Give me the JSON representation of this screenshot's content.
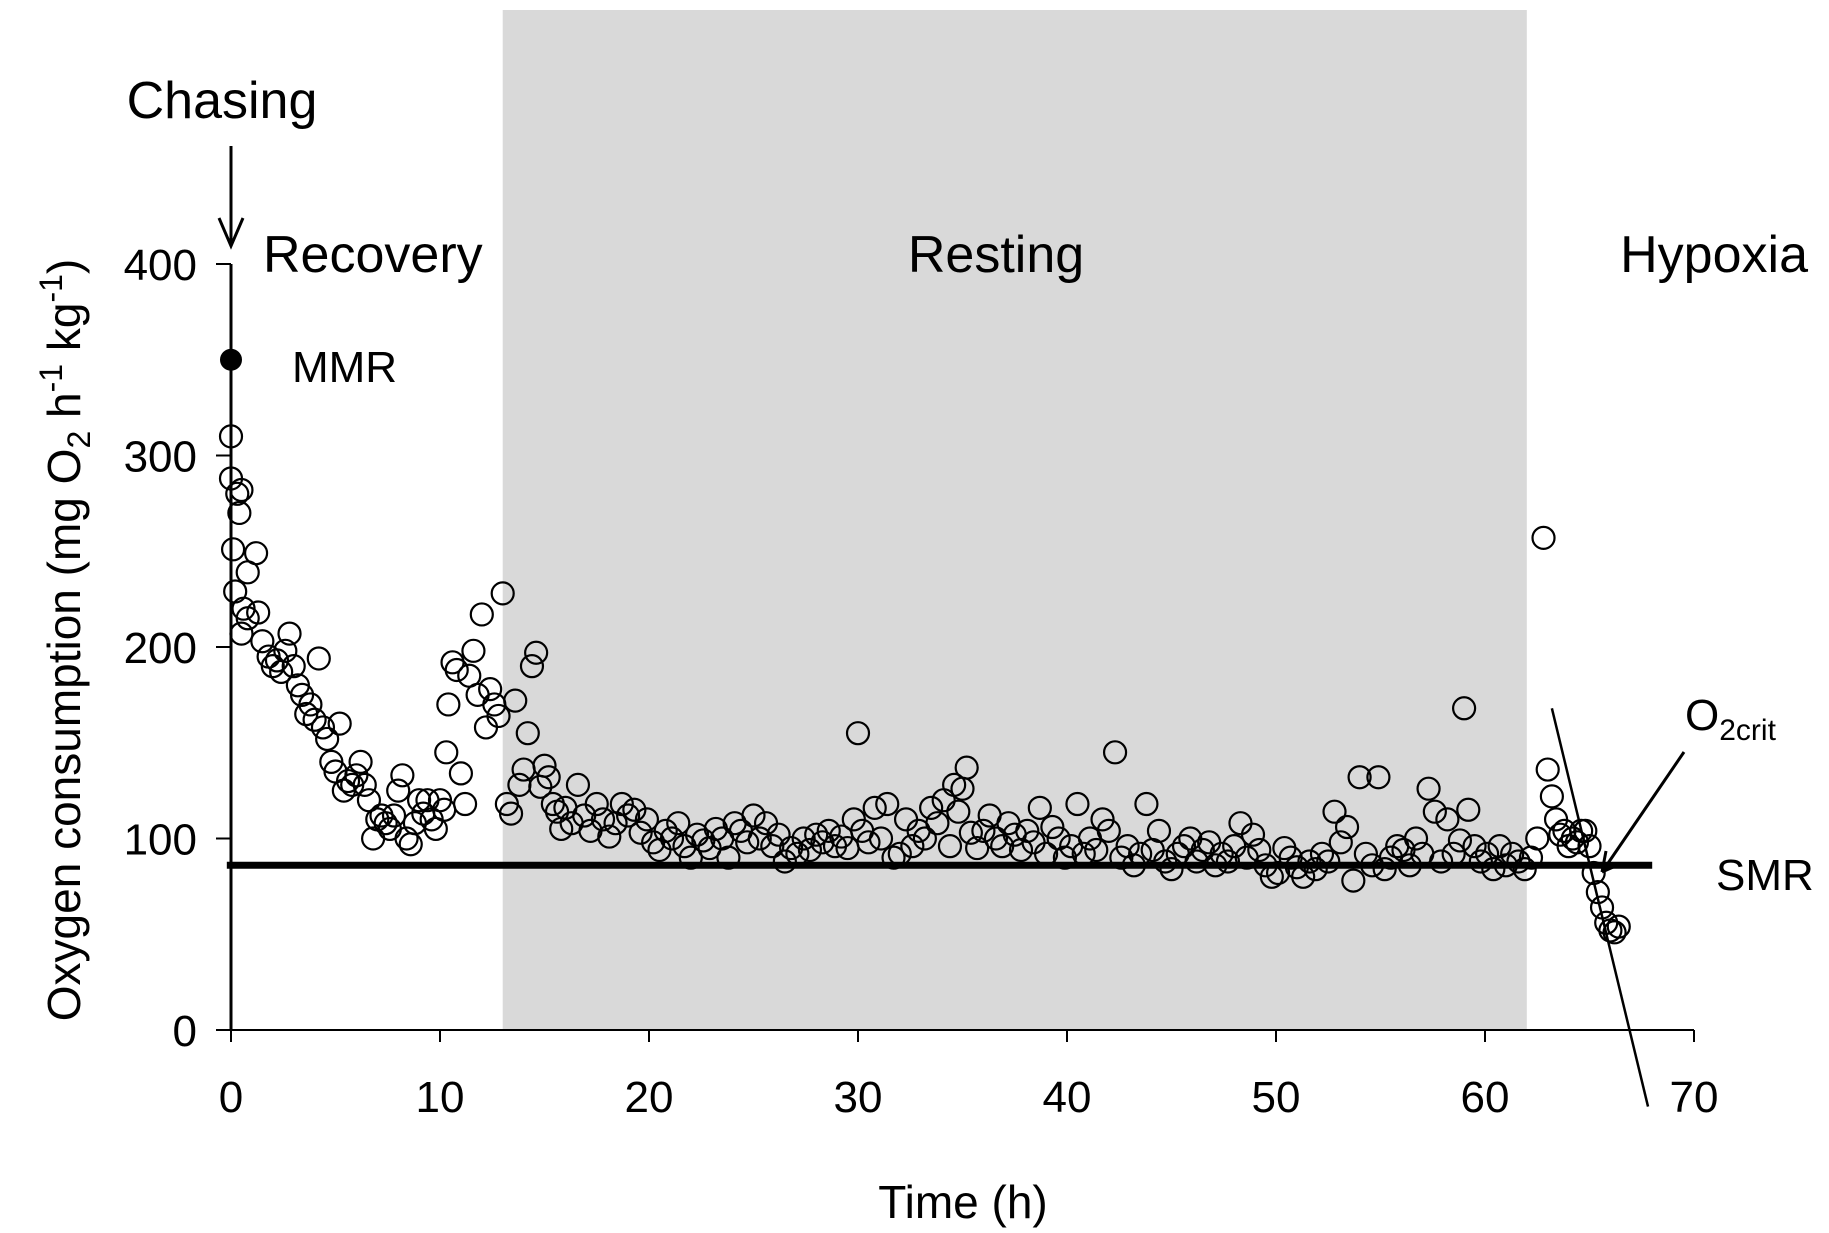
{
  "chart_data": {
    "type": "scatter",
    "title": "",
    "xlabel": "Time (h)",
    "ylabel": {
      "main": "Oxygen consumption (mg O",
      "sub": "2",
      "mid": " h",
      "sup1": "-1",
      "mid2": " kg",
      "sup2": "-1",
      "end": ")"
    },
    "xlim": [
      0,
      70
    ],
    "ylim": [
      0,
      400
    ],
    "xticks": [
      0,
      10,
      20,
      30,
      40,
      50,
      60,
      70
    ],
    "yticks": [
      0,
      100,
      200,
      300,
      400
    ],
    "grid": false,
    "shaded_region": {
      "label": "Resting",
      "x": [
        13,
        62
      ],
      "color": "#d9d9d9"
    },
    "phases": [
      "Chasing",
      "Recovery",
      "Resting",
      "Hypoxia"
    ],
    "mmr": {
      "label": "MMR",
      "x": 0,
      "y": 350
    },
    "smr": {
      "label": "SMR",
      "y": 86,
      "x": [
        -0.2,
        68
      ]
    },
    "o2crit": {
      "label": "O",
      "sub": "2crit",
      "line": [
        [
          63.2,
          168
        ],
        [
          67.8,
          -40
        ]
      ]
    },
    "series": [
      {
        "marker": "open-circle",
        "points": [
          [
            0,
            310
          ],
          [
            0,
            288
          ],
          [
            0.3,
            280
          ],
          [
            0.5,
            282
          ],
          [
            0.4,
            270
          ],
          [
            0.1,
            251
          ],
          [
            0.8,
            239
          ],
          [
            1.2,
            249
          ],
          [
            0.2,
            229
          ],
          [
            0.6,
            220
          ],
          [
            0.8,
            215
          ],
          [
            0.5,
            207
          ],
          [
            1.3,
            218
          ],
          [
            1.5,
            203
          ],
          [
            1.8,
            195
          ],
          [
            2.0,
            190
          ],
          [
            2.2,
            193
          ],
          [
            2.4,
            187
          ],
          [
            2.6,
            198
          ],
          [
            2.8,
            207
          ],
          [
            3.0,
            190
          ],
          [
            3.2,
            180
          ],
          [
            3.4,
            175
          ],
          [
            3.6,
            165
          ],
          [
            3.8,
            170
          ],
          [
            4.0,
            162
          ],
          [
            4.2,
            194
          ],
          [
            4.4,
            158
          ],
          [
            4.6,
            152
          ],
          [
            4.8,
            140
          ],
          [
            5.0,
            135
          ],
          [
            5.2,
            160
          ],
          [
            5.4,
            125
          ],
          [
            5.6,
            130
          ],
          [
            5.8,
            128
          ],
          [
            6.0,
            133
          ],
          [
            6.2,
            140
          ],
          [
            6.4,
            128
          ],
          [
            6.6,
            120
          ],
          [
            6.8,
            100
          ],
          [
            7.0,
            110
          ],
          [
            7.2,
            112
          ],
          [
            7.4,
            108
          ],
          [
            7.6,
            105
          ],
          [
            7.8,
            112
          ],
          [
            8.0,
            125
          ],
          [
            8.2,
            133
          ],
          [
            8.4,
            100
          ],
          [
            8.6,
            97
          ],
          [
            8.8,
            108
          ],
          [
            9.0,
            120
          ],
          [
            9.2,
            113
          ],
          [
            9.4,
            120
          ],
          [
            9.6,
            110
          ],
          [
            9.8,
            105
          ],
          [
            10.0,
            120
          ],
          [
            10.2,
            115
          ],
          [
            10.3,
            145
          ],
          [
            10.4,
            170
          ],
          [
            10.6,
            192
          ],
          [
            10.8,
            188
          ],
          [
            11.0,
            134
          ],
          [
            11.2,
            118
          ],
          [
            11.4,
            185
          ],
          [
            11.6,
            198
          ],
          [
            11.8,
            175
          ],
          [
            12.0,
            217
          ],
          [
            12.2,
            158
          ],
          [
            12.4,
            178
          ],
          [
            12.6,
            170
          ],
          [
            12.8,
            164
          ],
          [
            13.0,
            228
          ],
          [
            13.2,
            118
          ],
          [
            13.4,
            113
          ],
          [
            13.6,
            172
          ],
          [
            13.8,
            128
          ],
          [
            14.0,
            136
          ],
          [
            14.2,
            155
          ],
          [
            14.4,
            190
          ],
          [
            14.6,
            197
          ],
          [
            14.8,
            127
          ],
          [
            15.0,
            138
          ],
          [
            15.2,
            132
          ],
          [
            15.4,
            118
          ],
          [
            15.6,
            114
          ],
          [
            15.8,
            105
          ],
          [
            16.0,
            116
          ],
          [
            16.3,
            108
          ],
          [
            16.6,
            128
          ],
          [
            16.9,
            112
          ],
          [
            17.2,
            104
          ],
          [
            17.5,
            118
          ],
          [
            17.8,
            110
          ],
          [
            18.1,
            101
          ],
          [
            18.4,
            108
          ],
          [
            18.7,
            118
          ],
          [
            19.0,
            112
          ],
          [
            19.3,
            115
          ],
          [
            19.6,
            103
          ],
          [
            19.9,
            110
          ],
          [
            20.2,
            98
          ],
          [
            20.5,
            94
          ],
          [
            20.8,
            104
          ],
          [
            21.1,
            100
          ],
          [
            21.4,
            108
          ],
          [
            21.7,
            96
          ],
          [
            22.0,
            90
          ],
          [
            22.3,
            102
          ],
          [
            22.6,
            99
          ],
          [
            22.9,
            95
          ],
          [
            23.2,
            105
          ],
          [
            23.5,
            100
          ],
          [
            23.8,
            90
          ],
          [
            24.1,
            108
          ],
          [
            24.4,
            104
          ],
          [
            24.7,
            98
          ],
          [
            25.0,
            112
          ],
          [
            25.3,
            100
          ],
          [
            25.6,
            108
          ],
          [
            25.9,
            96
          ],
          [
            26.2,
            102
          ],
          [
            26.5,
            88
          ],
          [
            26.8,
            95
          ],
          [
            27.1,
            92
          ],
          [
            27.4,
            100
          ],
          [
            27.7,
            94
          ],
          [
            28.0,
            102
          ],
          [
            28.3,
            98
          ],
          [
            28.6,
            104
          ],
          [
            28.9,
            96
          ],
          [
            29.2,
            101
          ],
          [
            29.5,
            95
          ],
          [
            29.8,
            110
          ],
          [
            30.0,
            155
          ],
          [
            30.2,
            104
          ],
          [
            30.5,
            98
          ],
          [
            30.8,
            116
          ],
          [
            31.1,
            100
          ],
          [
            31.4,
            118
          ],
          [
            31.7,
            90
          ],
          [
            32.0,
            92
          ],
          [
            32.3,
            110
          ],
          [
            32.6,
            96
          ],
          [
            32.9,
            104
          ],
          [
            33.2,
            100
          ],
          [
            33.5,
            116
          ],
          [
            33.8,
            108
          ],
          [
            34.1,
            120
          ],
          [
            34.4,
            96
          ],
          [
            34.6,
            128
          ],
          [
            34.8,
            114
          ],
          [
            35.0,
            126
          ],
          [
            35.2,
            137
          ],
          [
            35.4,
            103
          ],
          [
            35.7,
            95
          ],
          [
            36.0,
            104
          ],
          [
            36.3,
            112
          ],
          [
            36.6,
            100
          ],
          [
            36.9,
            96
          ],
          [
            37.2,
            108
          ],
          [
            37.5,
            102
          ],
          [
            37.8,
            94
          ],
          [
            38.1,
            104
          ],
          [
            38.4,
            98
          ],
          [
            38.7,
            116
          ],
          [
            39.0,
            92
          ],
          [
            39.3,
            106
          ],
          [
            39.6,
            100
          ],
          [
            39.9,
            90
          ],
          [
            40.2,
            96
          ],
          [
            40.5,
            118
          ],
          [
            40.8,
            92
          ],
          [
            41.1,
            100
          ],
          [
            41.4,
            94
          ],
          [
            41.7,
            110
          ],
          [
            42.0,
            104
          ],
          [
            42.3,
            145
          ],
          [
            42.6,
            90
          ],
          [
            42.9,
            96
          ],
          [
            43.2,
            86
          ],
          [
            43.5,
            92
          ],
          [
            43.8,
            118
          ],
          [
            44.1,
            94
          ],
          [
            44.4,
            104
          ],
          [
            44.7,
            88
          ],
          [
            45.0,
            84
          ],
          [
            45.3,
            92
          ],
          [
            45.6,
            96
          ],
          [
            45.9,
            100
          ],
          [
            46.2,
            88
          ],
          [
            46.5,
            94
          ],
          [
            46.8,
            98
          ],
          [
            47.1,
            86
          ],
          [
            47.4,
            92
          ],
          [
            47.7,
            88
          ],
          [
            48.0,
            96
          ],
          [
            48.3,
            108
          ],
          [
            48.6,
            90
          ],
          [
            48.9,
            102
          ],
          [
            49.2,
            94
          ],
          [
            49.5,
            86
          ],
          [
            49.8,
            80
          ],
          [
            50.1,
            82
          ],
          [
            50.4,
            95
          ],
          [
            50.7,
            90
          ],
          [
            51.0,
            85
          ],
          [
            51.3,
            80
          ],
          [
            51.6,
            88
          ],
          [
            51.9,
            84
          ],
          [
            52.2,
            92
          ],
          [
            52.5,
            88
          ],
          [
            52.8,
            114
          ],
          [
            53.1,
            98
          ],
          [
            53.4,
            106
          ],
          [
            53.7,
            78
          ],
          [
            54.0,
            132
          ],
          [
            54.3,
            92
          ],
          [
            54.6,
            86
          ],
          [
            54.9,
            132
          ],
          [
            55.2,
            84
          ],
          [
            55.5,
            90
          ],
          [
            55.8,
            96
          ],
          [
            56.1,
            94
          ],
          [
            56.4,
            86
          ],
          [
            56.7,
            100
          ],
          [
            57.0,
            92
          ],
          [
            57.3,
            126
          ],
          [
            57.6,
            114
          ],
          [
            57.9,
            88
          ],
          [
            58.2,
            110
          ],
          [
            58.5,
            92
          ],
          [
            58.8,
            99
          ],
          [
            59.0,
            168
          ],
          [
            59.2,
            115
          ],
          [
            59.5,
            96
          ],
          [
            59.8,
            88
          ],
          [
            60.1,
            92
          ],
          [
            60.4,
            84
          ],
          [
            60.7,
            96
          ],
          [
            61.0,
            86
          ],
          [
            61.3,
            92
          ],
          [
            61.6,
            88
          ],
          [
            61.9,
            84
          ],
          [
            62.2,
            90
          ],
          [
            62.5,
            100
          ],
          [
            62.8,
            257
          ],
          [
            63.0,
            136
          ],
          [
            63.2,
            122
          ],
          [
            63.4,
            110
          ],
          [
            63.6,
            102
          ],
          [
            63.8,
            104
          ],
          [
            64.0,
            96
          ],
          [
            64.2,
            100
          ],
          [
            64.4,
            98
          ],
          [
            64.6,
            104
          ],
          [
            64.8,
            104
          ],
          [
            65.0,
            96
          ],
          [
            65.2,
            82
          ],
          [
            65.4,
            72
          ],
          [
            65.6,
            64
          ],
          [
            65.8,
            56
          ],
          [
            66.0,
            52
          ],
          [
            66.2,
            51
          ],
          [
            66.4,
            54
          ]
        ]
      }
    ]
  }
}
